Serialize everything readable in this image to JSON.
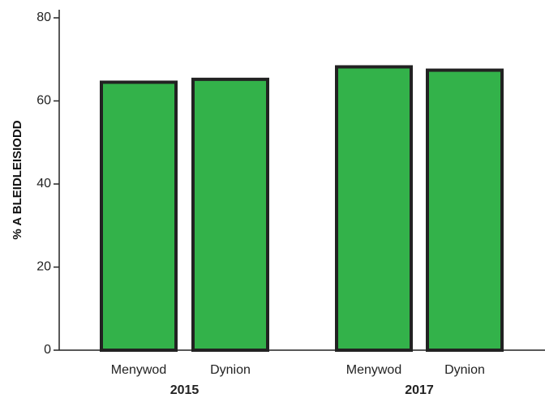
{
  "chart_data": {
    "type": "bar",
    "ylabel": "% A BLEIDLEISIODD",
    "ylim": [
      0,
      80
    ],
    "yticks": [
      0,
      20,
      40,
      60,
      80
    ],
    "grid": false,
    "bar_color": "#33b24a",
    "bar_outline_color": "#222222",
    "groups": [
      {
        "label": "2015",
        "categories": [
          "Menywod",
          "Dynion"
        ],
        "values": [
          64.5,
          65.2
        ]
      },
      {
        "label": "2017",
        "categories": [
          "Menywod",
          "Dynion"
        ],
        "values": [
          68.2,
          67.4
        ]
      }
    ]
  }
}
